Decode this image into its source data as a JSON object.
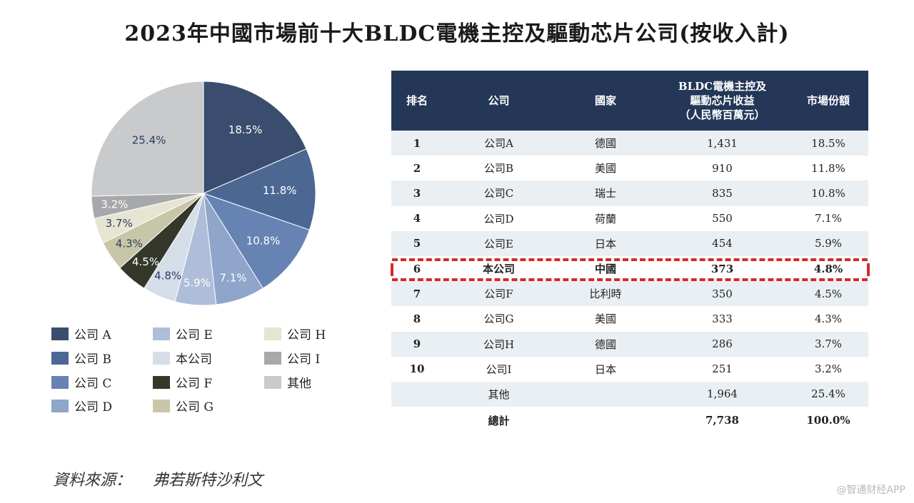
{
  "colors": {
    "header_bg": "#243757",
    "row_shade": "#e9eff3",
    "highlight": "#d42a2a",
    "slices": [
      "#3a4d6e",
      "#4c6792",
      "#6683b3",
      "#8fa5c9",
      "#aebdd8",
      "#d5dde9",
      "#34382a",
      "#c8c6a8",
      "#e6e4d2",
      "#a7a8aa",
      "#c9cacc"
    ]
  },
  "chart_data": {
    "type": "pie",
    "title": "2023年中國市場前十大BLDC電機主控及驅動芯片公司(按收入計)",
    "slices": [
      {
        "label": "公司 A",
        "value": 18.5,
        "display": "18.5%"
      },
      {
        "label": "公司 B",
        "value": 11.8,
        "display": "11.8%"
      },
      {
        "label": "公司 C",
        "value": 10.8,
        "display": "10.8%"
      },
      {
        "label": "公司 D",
        "value": 7.1,
        "display": "7.1%"
      },
      {
        "label": "公司 E",
        "value": 5.9,
        "display": "5.9%"
      },
      {
        "label": "本公司",
        "value": 4.8,
        "display": "4.8%"
      },
      {
        "label": "公司 F",
        "value": 4.5,
        "display": "4.5%"
      },
      {
        "label": "公司 G",
        "value": 4.3,
        "display": "4.3%"
      },
      {
        "label": "公司 H",
        "value": 3.7,
        "display": "3.7%"
      },
      {
        "label": "公司 I",
        "value": 3.2,
        "display": "3.2%"
      },
      {
        "label": "其他",
        "value": 25.4,
        "display": "25.4%"
      }
    ],
    "legend_placement": "bottom"
  },
  "table": {
    "headers": [
      "排名",
      "公司",
      "國家",
      "BLDC電機主控及\n驅動芯片收益\n（人民幣百萬元）",
      "市場份額"
    ],
    "rows": [
      {
        "rank": "1",
        "company": "公司A",
        "country": "德國",
        "revenue": "1,431",
        "share": "18.5%"
      },
      {
        "rank": "2",
        "company": "公司B",
        "country": "美國",
        "revenue": "910",
        "share": "11.8%"
      },
      {
        "rank": "3",
        "company": "公司C",
        "country": "瑞士",
        "revenue": "835",
        "share": "10.8%"
      },
      {
        "rank": "4",
        "company": "公司D",
        "country": "荷蘭",
        "revenue": "550",
        "share": "7.1%"
      },
      {
        "rank": "5",
        "company": "公司E",
        "country": "日本",
        "revenue": "454",
        "share": "5.9%"
      },
      {
        "rank": "6",
        "company": "本公司",
        "country": "中國",
        "revenue": "373",
        "share": "4.8%"
      },
      {
        "rank": "7",
        "company": "公司F",
        "country": "比利時",
        "revenue": "350",
        "share": "4.5%"
      },
      {
        "rank": "8",
        "company": "公司G",
        "country": "美國",
        "revenue": "333",
        "share": "4.3%"
      },
      {
        "rank": "9",
        "company": "公司H",
        "country": "德國",
        "revenue": "286",
        "share": "3.7%"
      },
      {
        "rank": "10",
        "company": "公司I",
        "country": "日本",
        "revenue": "251",
        "share": "3.2%"
      },
      {
        "rank": "",
        "company": "其他",
        "country": "",
        "revenue": "1,964",
        "share": "25.4%"
      }
    ],
    "total": {
      "label": "總計",
      "revenue": "7,738",
      "share": "100.0%"
    }
  },
  "source": {
    "label": "資料來源：",
    "name": "弗若斯特沙利文"
  },
  "watermark": "@智通财经APP"
}
